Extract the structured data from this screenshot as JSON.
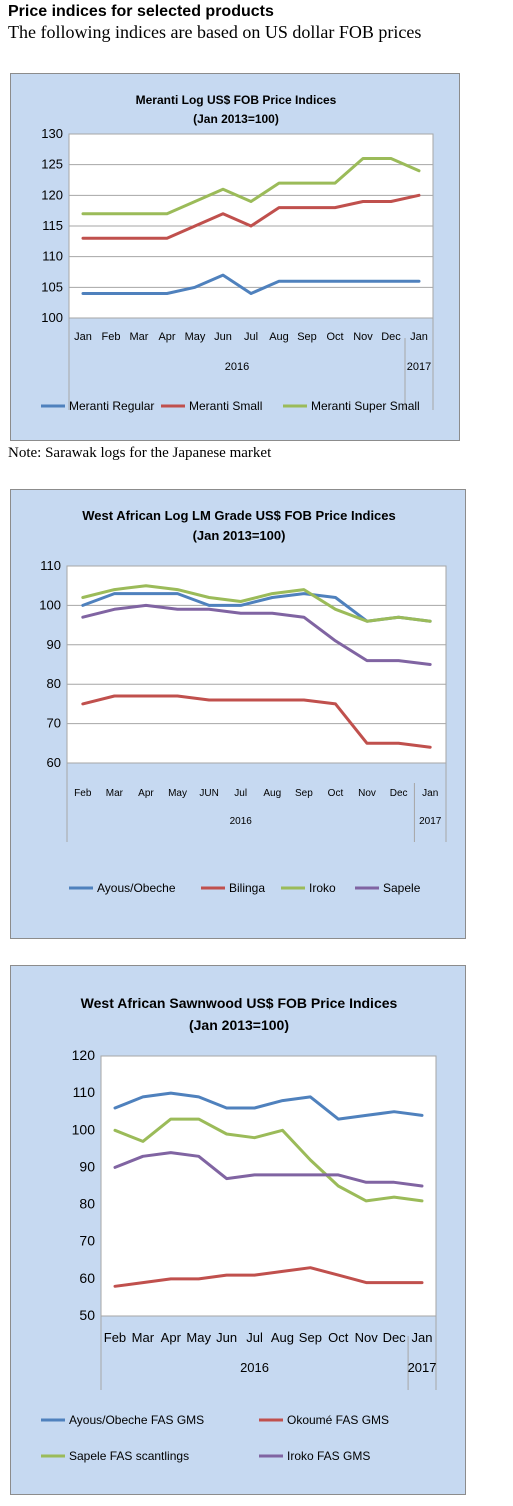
{
  "page": {
    "heading": "Price indices for selected products",
    "subheading": "The following indices are based on US dollar FOB prices",
    "note": "Note: Sarawak logs for the Japanese market"
  },
  "chart_data": [
    {
      "type": "line",
      "title": "Meranti Log US$ FOB Price Indices",
      "subtitle": "(Jan 2013=100)",
      "categories": [
        "Jan",
        "Feb",
        "Mar",
        "Apr",
        "May",
        "Jun",
        "Jul",
        "Aug",
        "Sep",
        "Oct",
        "Nov",
        "Dec",
        "Jan"
      ],
      "year_labels": [
        "2016",
        "2017"
      ],
      "ylim": [
        100,
        130
      ],
      "yticks": [
        100,
        105,
        110,
        115,
        120,
        125,
        130
      ],
      "grid": true,
      "legend_position": "bottom",
      "series": [
        {
          "name": "Meranti Regular",
          "color": "#4f81bd",
          "values": [
            104,
            104,
            104,
            104,
            105,
            107,
            104,
            106,
            106,
            106,
            106,
            106,
            106
          ]
        },
        {
          "name": "Meranti Small",
          "color": "#c0504d",
          "values": [
            113,
            113,
            113,
            113,
            115,
            117,
            115,
            118,
            118,
            118,
            119,
            119,
            120
          ]
        },
        {
          "name": "Meranti Super Small",
          "color": "#9bbb59",
          "values": [
            117,
            117,
            117,
            117,
            119,
            121,
            119,
            122,
            122,
            122,
            126,
            126,
            124
          ]
        }
      ]
    },
    {
      "type": "line",
      "title": "West African Log LM Grade US$ FOB Price Indices",
      "subtitle": "(Jan 2013=100)",
      "categories": [
        "Feb",
        "Mar",
        "Apr",
        "May",
        "JUN",
        "Jul",
        "Aug",
        "Sep",
        "Oct",
        "Nov",
        "Dec",
        "Jan"
      ],
      "year_labels": [
        "2016",
        "2017"
      ],
      "ylim": [
        60,
        110
      ],
      "yticks": [
        60,
        70,
        80,
        90,
        100,
        110
      ],
      "grid": true,
      "legend_position": "bottom",
      "series": [
        {
          "name": "Ayous/Obeche",
          "color": "#4f81bd",
          "values": [
            100,
            103,
            103,
            103,
            100,
            100,
            102,
            103,
            102,
            96,
            97,
            96
          ]
        },
        {
          "name": "Bilinga",
          "color": "#c0504d",
          "values": [
            75,
            77,
            77,
            77,
            76,
            76,
            76,
            76,
            75,
            65,
            65,
            64
          ]
        },
        {
          "name": "Iroko",
          "color": "#9bbb59",
          "values": [
            102,
            104,
            105,
            104,
            102,
            101,
            103,
            104,
            99,
            96,
            97,
            96
          ]
        },
        {
          "name": "Sapele",
          "color": "#8064a2",
          "values": [
            97,
            99,
            100,
            99,
            99,
            98,
            98,
            97,
            91,
            86,
            86,
            85
          ]
        }
      ]
    },
    {
      "type": "line",
      "title": "West African Sawnwood US$ FOB Price Indices",
      "subtitle": "(Jan 2013=100)",
      "categories": [
        "Feb",
        "Mar",
        "Apr",
        "May",
        "Jun",
        "Jul",
        "Aug",
        "Sep",
        "Oct",
        "Nov",
        "Dec",
        "Jan"
      ],
      "year_labels": [
        "2016",
        "2017"
      ],
      "ylim": [
        50,
        120
      ],
      "yticks": [
        50,
        60,
        70,
        80,
        90,
        100,
        110,
        120
      ],
      "grid": false,
      "legend_position": "bottom",
      "series": [
        {
          "name": "Ayous/Obeche FAS GMS",
          "color": "#4f81bd",
          "values": [
            106,
            109,
            110,
            109,
            106,
            106,
            108,
            109,
            103,
            104,
            105,
            104
          ]
        },
        {
          "name": "Okoumé  FAS GMS",
          "color": "#c0504d",
          "values": [
            58,
            59,
            60,
            60,
            61,
            61,
            62,
            63,
            61,
            59,
            59,
            59
          ]
        },
        {
          "name": "Sapele FAS scantlings",
          "color": "#9bbb59",
          "values": [
            100,
            97,
            103,
            103,
            99,
            98,
            100,
            92,
            85,
            81,
            82,
            81
          ]
        },
        {
          "name": "Iroko FAS GMS",
          "color": "#8064a2",
          "values": [
            90,
            93,
            94,
            93,
            87,
            88,
            88,
            88,
            88,
            86,
            86,
            85
          ]
        }
      ]
    }
  ]
}
